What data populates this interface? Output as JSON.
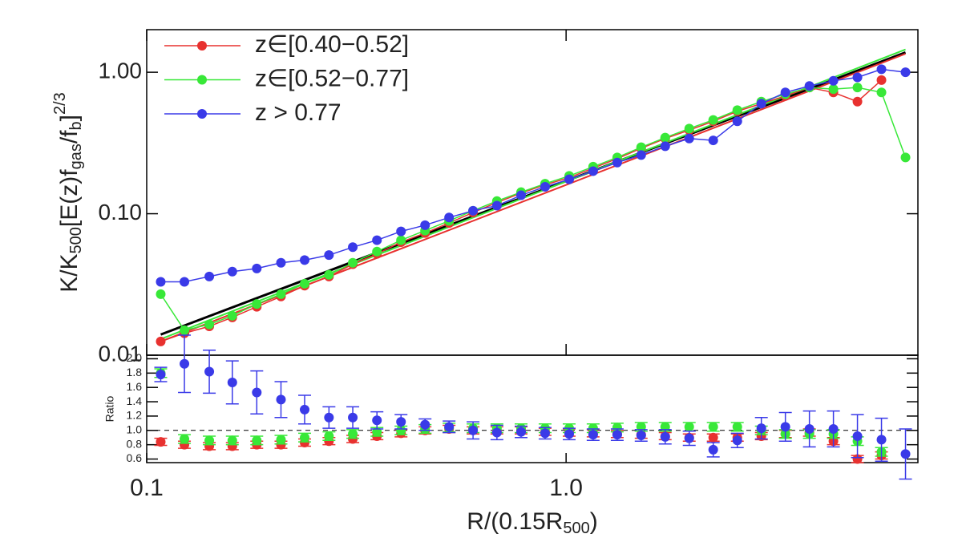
{
  "chart_data": [
    {
      "type": "scatter",
      "y_label_parts": [
        "K/K",
        "500",
        "[E(z)f",
        "gas",
        "/f",
        "b",
        "]",
        "2/3"
      ],
      "log_x": true,
      "log_y": true,
      "xlim": [
        0.1,
        6.9
      ],
      "ylim": [
        0.01,
        2.0
      ],
      "yticks": [
        {
          "value": 0.01,
          "label": "0.01"
        },
        {
          "value": 0.1,
          "label": "0.10"
        },
        {
          "value": 1,
          "label": "1.00"
        }
      ],
      "legend": "upper left",
      "x": [
        0.108,
        0.123,
        0.141,
        0.16,
        0.183,
        0.209,
        0.238,
        0.272,
        0.31,
        0.354,
        0.404,
        0.461,
        0.526,
        0.6,
        0.684,
        0.781,
        0.891,
        1.017,
        1.16,
        1.324,
        1.51,
        1.723,
        1.966,
        2.243,
        2.56,
        2.921,
        3.333,
        3.803,
        4.339,
        4.951,
        5.649,
        6.446
      ],
      "series": [
        {
          "name": "z∈[0.40−0.52]",
          "color": "#e8312f",
          "values": [
            0.0125,
            0.0143,
            0.016,
            0.0185,
            0.022,
            0.026,
            0.031,
            0.036,
            0.044,
            0.052,
            0.063,
            0.073,
            0.086,
            0.102,
            0.12,
            0.14,
            0.16,
            0.18,
            0.21,
            0.245,
            0.29,
            0.34,
            0.39,
            0.45,
            0.53,
            0.6,
            0.68,
            0.78,
            0.72,
            0.62,
            0.88,
            null
          ]
        },
        {
          "name": "z∈[0.52−0.77]",
          "color": "#38e838",
          "values": [
            0.027,
            0.015,
            0.0165,
            0.019,
            0.023,
            0.027,
            0.032,
            0.037,
            0.045,
            0.054,
            0.065,
            0.076,
            0.089,
            0.105,
            0.123,
            0.142,
            0.163,
            0.185,
            0.215,
            0.25,
            0.295,
            0.345,
            0.4,
            0.46,
            0.54,
            0.62,
            0.7,
            0.78,
            0.76,
            0.78,
            0.72,
            0.25
          ]
        },
        {
          "name": "z > 0.77",
          "color": "#3a3ae8",
          "values": [
            0.033,
            0.033,
            0.036,
            0.039,
            0.041,
            0.045,
            0.047,
            0.051,
            0.058,
            0.065,
            0.075,
            0.083,
            0.094,
            0.105,
            0.114,
            0.135,
            0.155,
            0.175,
            0.2,
            0.23,
            0.26,
            0.3,
            0.34,
            0.33,
            0.45,
            0.6,
            0.72,
            0.8,
            0.87,
            0.92,
            1.05,
            1.0
          ]
        }
      ],
      "fits": [
        {
          "color": "#000000",
          "x": [
            0.108,
            6.446
          ],
          "values": [
            0.014,
            1.38
          ]
        },
        {
          "color": "#e8312f",
          "x": [
            0.108,
            6.446
          ],
          "values": [
            0.0125,
            1.35
          ]
        },
        {
          "color": "#38e838",
          "x": [
            0.108,
            6.446
          ],
          "values": [
            0.013,
            1.45
          ]
        }
      ]
    },
    {
      "type": "errorbar",
      "y_label": "Ratio",
      "x_label_parts": [
        "R/(0.15R",
        "500",
        ")"
      ],
      "log_x": true,
      "xlim": [
        0.1,
        6.9
      ],
      "ylim": [
        0.55,
        2.05
      ],
      "xticks": [
        0.1,
        {
          "value": 1,
          "label": "1.0"
        }
      ],
      "yticks": [
        0.6,
        0.8,
        {
          "value": 1,
          "label": "1.0"
        },
        1.2,
        1.4,
        1.6,
        1.8,
        {
          "value": 2,
          "label": "2.0"
        }
      ],
      "reference": 1,
      "x": [
        0.108,
        0.123,
        0.141,
        0.16,
        0.183,
        0.209,
        0.238,
        0.272,
        0.31,
        0.354,
        0.404,
        0.461,
        0.526,
        0.6,
        0.684,
        0.781,
        0.891,
        1.017,
        1.16,
        1.324,
        1.51,
        1.723,
        1.966,
        2.243,
        2.56,
        2.921,
        3.333,
        3.803,
        4.339,
        4.951,
        5.649,
        6.446
      ],
      "series": [
        {
          "color": "#e8312f",
          "values": [
            0.84,
            0.8,
            0.78,
            0.78,
            0.8,
            0.8,
            0.83,
            0.85,
            0.88,
            0.92,
            0.96,
            1.0,
            1.02,
            1.0,
            1.0,
            1.0,
            0.98,
            0.97,
            0.96,
            0.95,
            0.94,
            0.92,
            0.9,
            0.9,
            0.9,
            0.92,
            0.95,
            0.97,
            0.85,
            0.6,
            0.65,
            null
          ],
          "errors": [
            0.05,
            0.05,
            0.05,
            0.05,
            0.05,
            0.05,
            0.05,
            0.05,
            0.05,
            0.05,
            0.05,
            0.05,
            0.05,
            0.05,
            0.05,
            0.05,
            0.05,
            0.05,
            0.05,
            0.05,
            0.05,
            0.05,
            0.05,
            0.05,
            0.05,
            0.05,
            0.05,
            0.05,
            0.05,
            0.05,
            0.05,
            null
          ]
        },
        {
          "color": "#38e838",
          "values": [
            1.8,
            0.88,
            0.86,
            0.86,
            0.86,
            0.87,
            0.9,
            0.92,
            0.95,
            0.98,
            1.0,
            1.02,
            1.04,
            1.03,
            1.03,
            1.03,
            1.03,
            1.03,
            1.03,
            1.04,
            1.05,
            1.05,
            1.05,
            1.05,
            1.05,
            1.0,
            0.95,
            0.95,
            0.95,
            0.85,
            0.7,
            null
          ],
          "errors": [
            0.06,
            0.06,
            0.06,
            0.06,
            0.06,
            0.06,
            0.06,
            0.06,
            0.06,
            0.06,
            0.06,
            0.06,
            0.06,
            0.06,
            0.06,
            0.06,
            0.06,
            0.06,
            0.06,
            0.06,
            0.06,
            0.06,
            0.06,
            0.06,
            0.06,
            0.06,
            0.06,
            0.06,
            0.06,
            0.06,
            0.06,
            null
          ]
        },
        {
          "color": "#3a3ae8",
          "values": [
            1.78,
            1.93,
            1.82,
            1.67,
            1.53,
            1.43,
            1.29,
            1.18,
            1.18,
            1.14,
            1.12,
            1.08,
            1.05,
            1.0,
            0.97,
            0.98,
            0.96,
            0.95,
            0.94,
            0.94,
            0.93,
            0.91,
            0.89,
            0.73,
            0.86,
            1.03,
            1.05,
            1.02,
            1.02,
            0.92,
            0.87,
            0.67
          ],
          "errors": [
            0.1,
            0.4,
            0.3,
            0.3,
            0.3,
            0.25,
            0.2,
            0.15,
            0.15,
            0.12,
            0.1,
            0.08,
            0.08,
            0.12,
            0.1,
            0.08,
            0.08,
            0.08,
            0.08,
            0.08,
            0.08,
            0.1,
            0.1,
            0.1,
            0.1,
            0.15,
            0.2,
            0.25,
            0.25,
            0.3,
            0.3,
            0.35
          ]
        }
      ]
    }
  ]
}
